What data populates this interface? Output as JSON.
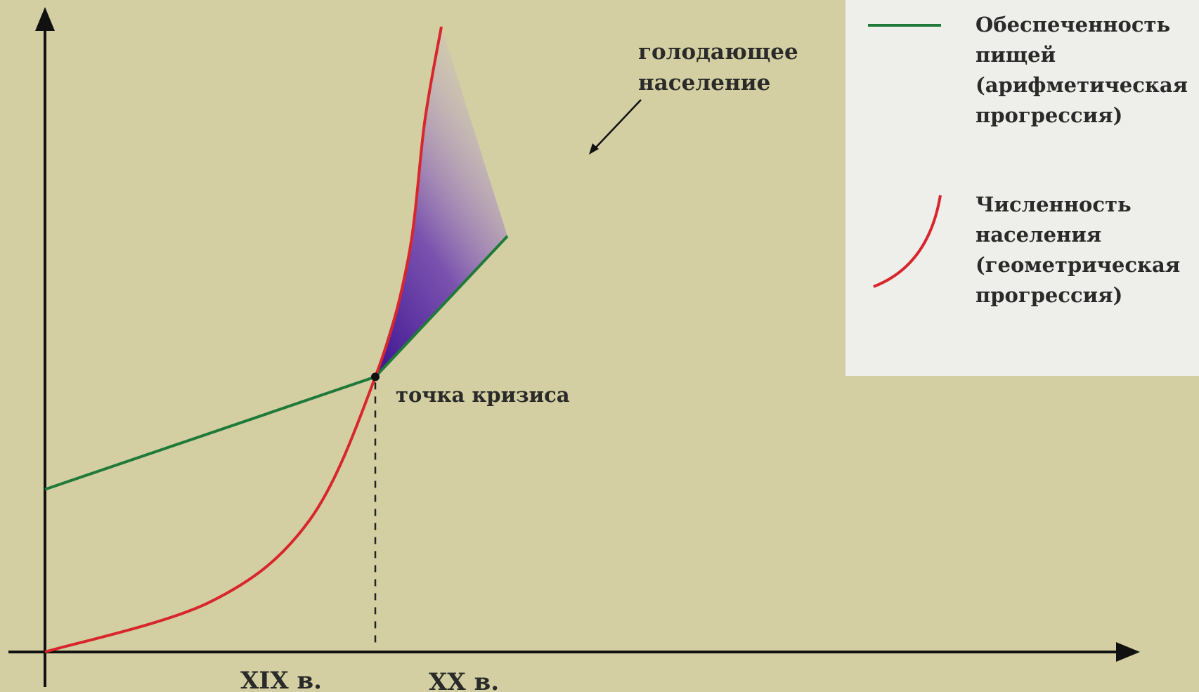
{
  "chart_data": {
    "type": "line",
    "title": "",
    "xlabel": "",
    "ylabel": "",
    "x_ticks": [
      "XIX в.",
      "XX в."
    ],
    "series": [
      {
        "name": "Обеспеченность пищей (арифметическая прогрессия)",
        "shape": "linear",
        "color": "#1f7a3a",
        "points": [
          [
            0,
            0.26
          ],
          [
            1.0,
            0.44
          ],
          [
            1.4,
            0.665
          ]
        ]
      },
      {
        "name": "Численность населения (геометрическая прогрессия)",
        "shape": "exponential",
        "color": "#d8262c",
        "points": [
          [
            0,
            0.0
          ],
          [
            0.5,
            0.08
          ],
          [
            0.8,
            0.21
          ],
          [
            1.0,
            0.44
          ],
          [
            1.1,
            0.63
          ],
          [
            1.15,
            0.85
          ],
          [
            1.2,
            1.0
          ]
        ]
      }
    ],
    "annotations": {
      "crisis_point": {
        "label": "точка кризиса",
        "x": 1.0,
        "y": 0.44
      },
      "shaded_region": {
        "label": "голодающее население",
        "color": "#5a2a9e"
      }
    },
    "legend_position": "top-right",
    "grid": false,
    "colors": {
      "background": "#d3cfa2",
      "legend_background": "#eeeeea",
      "axis": "#111111",
      "hunger_fill": "#4b1f9a"
    }
  },
  "legend": {
    "food_label": "Обеспеченность\nпищей\n(арифметическая\nпрогрессия)",
    "population_label": "Численность\nнаселения\n(геометрическая\nпрогрессия)"
  },
  "labels": {
    "hunger_line1": "голодающее",
    "hunger_line2": "население",
    "crisis": "точка кризиса",
    "tick_19": "XIX в.",
    "tick_20": "XX в."
  }
}
